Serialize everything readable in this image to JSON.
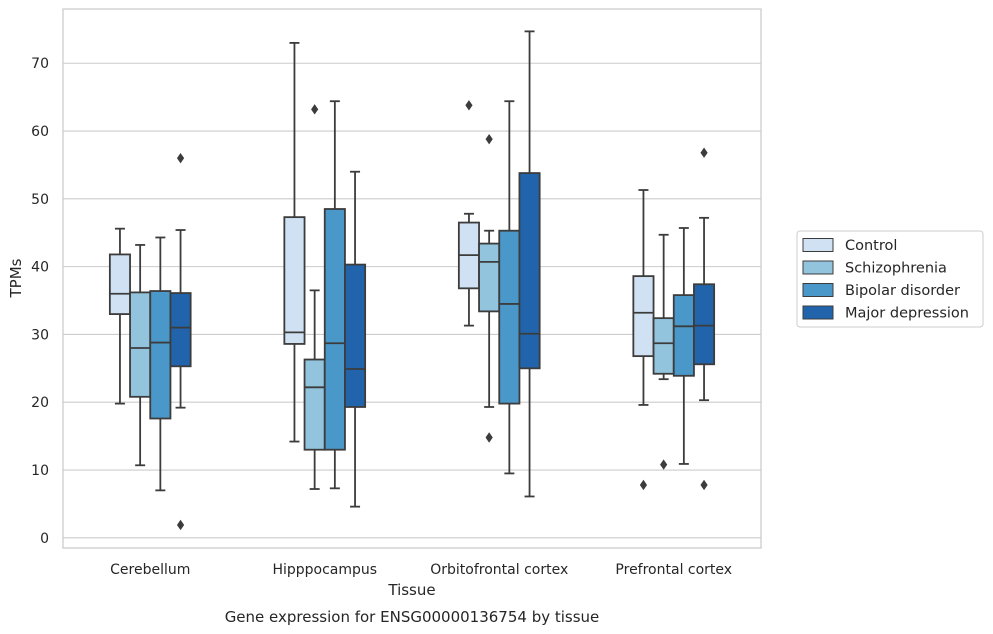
{
  "chart_data": {
    "type": "box",
    "xlabel": "Tissue",
    "ylabel": "TPMs",
    "caption": "Gene expression for ENSG00000136754 by tissue",
    "ylim": [
      -1.5,
      78
    ],
    "yticks": [
      0,
      10,
      20,
      30,
      40,
      50,
      60,
      70
    ],
    "grid": true,
    "legend_position": "right",
    "categories": [
      "Cerebellum",
      "Hipppocampus",
      "Orbitofrontal cortex",
      "Prefrontal cortex"
    ],
    "series": [
      {
        "name": "Control",
        "color": "#cfe1f2",
        "boxes": [
          {
            "whisker_low": 19.8,
            "q1": 33.0,
            "median": 36.0,
            "q3": 41.8,
            "whisker_high": 45.6,
            "outliers": []
          },
          {
            "whisker_low": 14.2,
            "q1": 28.6,
            "median": 30.3,
            "q3": 47.3,
            "whisker_high": 73.0,
            "outliers": []
          },
          {
            "whisker_low": 31.3,
            "q1": 36.8,
            "median": 41.7,
            "q3": 46.5,
            "whisker_high": 47.8,
            "outliers": [
              63.8
            ]
          },
          {
            "whisker_low": 19.6,
            "q1": 26.8,
            "median": 33.2,
            "q3": 38.6,
            "whisker_high": 51.3,
            "outliers": [
              7.8
            ]
          }
        ]
      },
      {
        "name": "Schizophrenia",
        "color": "#93c4de",
        "boxes": [
          {
            "whisker_low": 10.7,
            "q1": 20.8,
            "median": 28.0,
            "q3": 36.2,
            "whisker_high": 43.2,
            "outliers": []
          },
          {
            "whisker_low": 7.2,
            "q1": 13.0,
            "median": 22.2,
            "q3": 26.3,
            "whisker_high": 36.5,
            "outliers": [
              63.2
            ]
          },
          {
            "whisker_low": 19.3,
            "q1": 33.4,
            "median": 40.7,
            "q3": 43.4,
            "whisker_high": 45.3,
            "outliers": [
              58.8,
              14.8
            ]
          },
          {
            "whisker_low": 23.4,
            "q1": 24.2,
            "median": 28.7,
            "q3": 32.4,
            "whisker_high": 44.7,
            "outliers": [
              10.8
            ]
          }
        ]
      },
      {
        "name": "Bipolar disorder",
        "color": "#4a98c9",
        "boxes": [
          {
            "whisker_low": 7.0,
            "q1": 17.6,
            "median": 28.8,
            "q3": 36.4,
            "whisker_high": 44.3,
            "outliers": []
          },
          {
            "whisker_low": 7.3,
            "q1": 13.0,
            "median": 28.7,
            "q3": 48.5,
            "whisker_high": 64.4,
            "outliers": []
          },
          {
            "whisker_low": 9.5,
            "q1": 19.8,
            "median": 34.5,
            "q3": 45.3,
            "whisker_high": 64.4,
            "outliers": []
          },
          {
            "whisker_low": 10.9,
            "q1": 23.9,
            "median": 31.2,
            "q3": 35.8,
            "whisker_high": 45.7,
            "outliers": []
          }
        ]
      },
      {
        "name": "Major depression",
        "color": "#2164ab",
        "boxes": [
          {
            "whisker_low": 19.2,
            "q1": 25.3,
            "median": 31.0,
            "q3": 36.1,
            "whisker_high": 45.4,
            "outliers": [
              56.0,
              1.9
            ]
          },
          {
            "whisker_low": 4.6,
            "q1": 19.3,
            "median": 24.9,
            "q3": 40.3,
            "whisker_high": 54.0,
            "outliers": []
          },
          {
            "whisker_low": 6.1,
            "q1": 25.0,
            "median": 30.1,
            "q3": 53.8,
            "whisker_high": 74.7,
            "outliers": []
          },
          {
            "whisker_low": 20.3,
            "q1": 25.6,
            "median": 31.3,
            "q3": 37.4,
            "whisker_high": 47.2,
            "outliers": [
              56.8,
              7.8
            ]
          }
        ]
      }
    ]
  }
}
